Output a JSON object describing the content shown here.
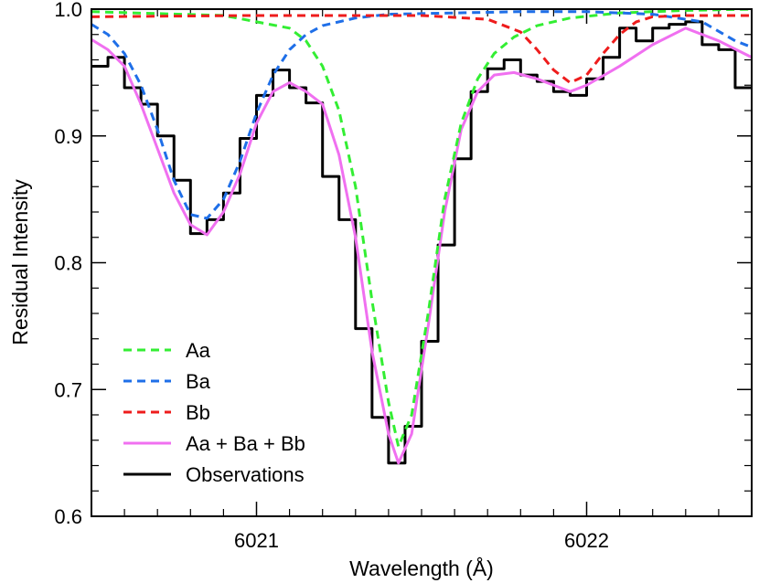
{
  "chart_data": {
    "type": "line",
    "title": "",
    "xlabel": "Wavelength (Å)",
    "ylabel": "Residual Intensity",
    "xlim": [
      6020.5,
      6022.5
    ],
    "ylim": [
      0.6,
      1.0
    ],
    "x_ticks": [
      6021,
      6022
    ],
    "y_ticks": [
      0.6,
      0.7,
      0.8,
      0.9,
      1.0
    ],
    "y_tick_labels": [
      "0.6",
      "0.7",
      "0.8",
      "0.9",
      "1.0"
    ],
    "legend_position": "bottom-left",
    "series": [
      {
        "name": "Aa",
        "color": "#33ee33",
        "style": "dashed",
        "x": [
          6020.5,
          6020.9,
          6021.1,
          6021.15,
          6021.2,
          6021.25,
          6021.3,
          6021.35,
          6021.4,
          6021.43,
          6021.47,
          6021.52,
          6021.57,
          6021.62,
          6021.67,
          6021.72,
          6021.78,
          6021.85,
          6021.95,
          6022.1,
          6022.3,
          6022.5
        ],
        "y": [
          0.998,
          0.995,
          0.985,
          0.975,
          0.955,
          0.92,
          0.86,
          0.77,
          0.69,
          0.655,
          0.68,
          0.76,
          0.85,
          0.91,
          0.945,
          0.965,
          0.978,
          0.987,
          0.993,
          0.997,
          0.999,
          1.0
        ]
      },
      {
        "name": "Ba",
        "color": "#1f6fe8",
        "style": "dashed",
        "x": [
          6020.5,
          6020.55,
          6020.6,
          6020.65,
          6020.7,
          6020.75,
          6020.8,
          6020.85,
          6020.9,
          6020.95,
          6021.0,
          6021.05,
          6021.1,
          6021.15,
          6021.2,
          6021.3,
          6021.4,
          6021.6,
          6021.8,
          6022.0,
          6022.2,
          6022.35,
          6022.45,
          6022.5
        ],
        "y": [
          0.988,
          0.98,
          0.965,
          0.94,
          0.905,
          0.865,
          0.838,
          0.835,
          0.85,
          0.88,
          0.918,
          0.948,
          0.968,
          0.98,
          0.987,
          0.993,
          0.996,
          0.997,
          0.998,
          0.998,
          0.996,
          0.99,
          0.975,
          0.97
        ]
      },
      {
        "name": "Bb",
        "color": "#ee1c1c",
        "style": "dashed",
        "x": [
          6020.5,
          6021.0,
          6021.5,
          6021.7,
          6021.8,
          6021.85,
          6021.9,
          6021.95,
          6022.0,
          6022.05,
          6022.1,
          6022.15,
          6022.2,
          6022.3,
          6022.5
        ],
        "y": [
          0.994,
          0.995,
          0.995,
          0.992,
          0.982,
          0.968,
          0.952,
          0.942,
          0.948,
          0.965,
          0.98,
          0.99,
          0.994,
          0.995,
          0.995
        ]
      },
      {
        "name": "Aa + Ba + Bb",
        "color": "#f070f0",
        "style": "solid",
        "x": [
          6020.5,
          6020.55,
          6020.6,
          6020.65,
          6020.7,
          6020.75,
          6020.8,
          6020.85,
          6020.9,
          6020.95,
          6021.0,
          6021.05,
          6021.1,
          6021.15,
          6021.2,
          6021.25,
          6021.3,
          6021.35,
          6021.4,
          6021.43,
          6021.47,
          6021.52,
          6021.57,
          6021.62,
          6021.67,
          6021.72,
          6021.78,
          6021.85,
          6021.9,
          6021.95,
          6022.0,
          6022.1,
          6022.2,
          6022.3,
          6022.4,
          6022.5
        ],
        "y": [
          0.976,
          0.968,
          0.955,
          0.925,
          0.89,
          0.855,
          0.83,
          0.822,
          0.84,
          0.87,
          0.91,
          0.935,
          0.942,
          0.935,
          0.925,
          0.885,
          0.82,
          0.73,
          0.665,
          0.642,
          0.665,
          0.75,
          0.84,
          0.905,
          0.935,
          0.948,
          0.95,
          0.945,
          0.94,
          0.935,
          0.94,
          0.955,
          0.972,
          0.985,
          0.975,
          0.962
        ]
      },
      {
        "name": "Observations",
        "color": "#000000",
        "style": "histogram",
        "x": [
          6020.5,
          6020.55,
          6020.6,
          6020.65,
          6020.7,
          6020.75,
          6020.8,
          6020.85,
          6020.9,
          6020.95,
          6021.0,
          6021.05,
          6021.1,
          6021.15,
          6021.2,
          6021.25,
          6021.3,
          6021.35,
          6021.4,
          6021.45,
          6021.5,
          6021.55,
          6021.6,
          6021.65,
          6021.7,
          6021.75,
          6021.8,
          6021.85,
          6021.9,
          6021.95,
          6022.0,
          6022.05,
          6022.1,
          6022.15,
          6022.2,
          6022.25,
          6022.3,
          6022.35,
          6022.4,
          6022.45
        ],
        "y": [
          0.955,
          0.962,
          0.938,
          0.925,
          0.9,
          0.865,
          0.823,
          0.834,
          0.855,
          0.898,
          0.932,
          0.952,
          0.938,
          0.926,
          0.868,
          0.834,
          0.748,
          0.678,
          0.642,
          0.671,
          0.738,
          0.814,
          0.882,
          0.935,
          0.953,
          0.96,
          0.948,
          0.943,
          0.935,
          0.932,
          0.945,
          0.962,
          0.985,
          0.975,
          0.985,
          0.988,
          0.99,
          0.972,
          0.968,
          0.938
        ],
        "bin_width": 0.05
      }
    ]
  }
}
